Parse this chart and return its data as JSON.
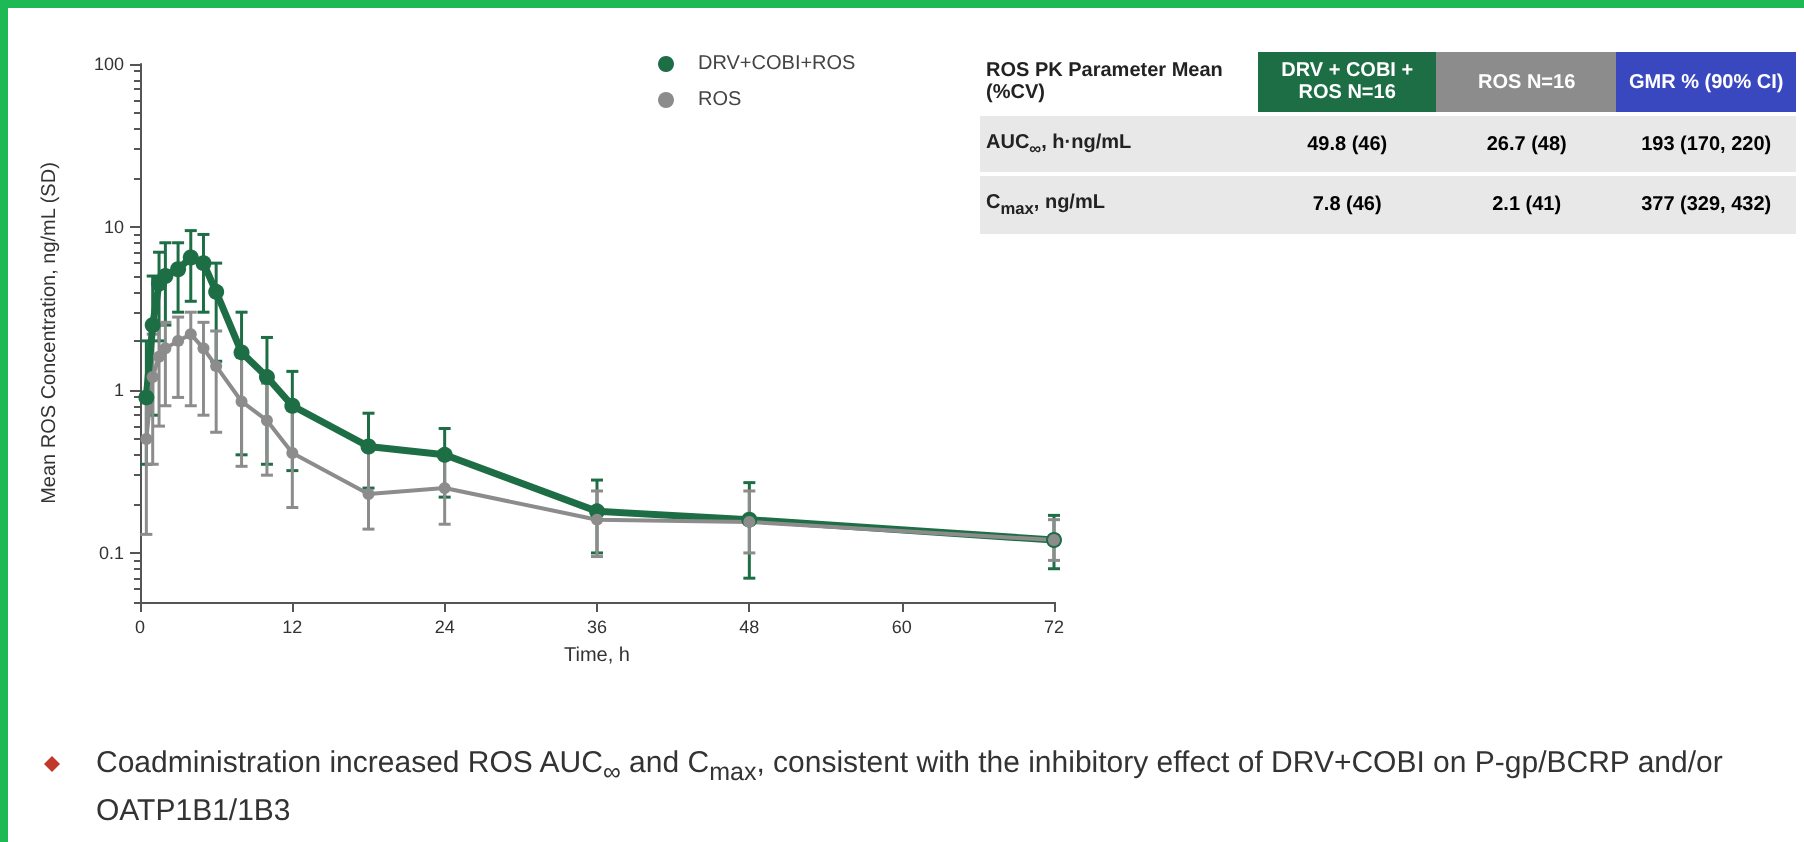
{
  "chart_data": [
    {
      "type": "line",
      "xlabel": "Time, h",
      "ylabel": "Mean ROS Concentration, ng/mL (SD)",
      "log": "y",
      "xlim": [
        0,
        72
      ],
      "xticks": [
        0,
        12,
        24,
        36,
        48,
        60,
        72
      ],
      "ylim": [
        0.05,
        100
      ],
      "yticks": [
        0.1,
        1,
        10,
        100
      ],
      "grid": false,
      "legend": "top",
      "marker": "circle",
      "line_style": "solid",
      "x": [
        0.5,
        1,
        1.5,
        2,
        3,
        4,
        5,
        6,
        8,
        10,
        12,
        18,
        24,
        36,
        48,
        72
      ],
      "series": [
        {
          "name": "DRV+COBI+ROS",
          "color": "#1e6e45",
          "values": [
            0.9,
            2.5,
            4.5,
            5,
            5.5,
            6.5,
            6,
            4,
            1.7,
            1.2,
            0.8,
            0.45,
            0.4,
            0.18,
            0.16,
            0.12
          ],
          "errors": [
            [
              0.35,
              2
            ],
            [
              0.7,
              5
            ],
            [
              2,
              7
            ],
            [
              2.5,
              8
            ],
            [
              3,
              8
            ],
            [
              3.5,
              9.5
            ],
            [
              3,
              9
            ],
            [
              1.5,
              6
            ],
            [
              0.4,
              3
            ],
            [
              0.35,
              2.1
            ],
            [
              0.32,
              1.3
            ],
            [
              0.25,
              0.72
            ],
            [
              0.22,
              0.58
            ],
            [
              0.1,
              0.28
            ],
            [
              0.07,
              0.27
            ],
            [
              0.08,
              0.17
            ]
          ]
        },
        {
          "name": "ROS",
          "color": "#8c8c8c",
          "values": [
            0.5,
            1.2,
            1.6,
            1.8,
            2,
            2.2,
            1.8,
            1.4,
            0.85,
            0.65,
            0.41,
            0.23,
            0.25,
            0.16,
            0.155,
            0.12
          ],
          "errors": [
            [
              0.13,
              0.9
            ],
            [
              0.35,
              2.2
            ],
            [
              0.6,
              2.5
            ],
            [
              0.8,
              2.6
            ],
            [
              0.9,
              2.8
            ],
            [
              0.8,
              3
            ],
            [
              0.7,
              2.6
            ],
            [
              0.55,
              2.3
            ],
            [
              0.34,
              1.6
            ],
            [
              0.3,
              1.1
            ],
            [
              0.19,
              0.75
            ],
            [
              0.14,
              0.45
            ],
            [
              0.15,
              0.4
            ],
            [
              0.095,
              0.24
            ],
            [
              0.1,
              0.24
            ],
            [
              0.09,
              0.16
            ]
          ]
        }
      ],
      "annotations": [
        "Coadministration increased ROS AUC$_{∞}$ and C$_{max}$, consistent with the inhibitory effect of DRV+COBI on P-gp/BCRP and/or OATP1B1/1B3"
      ]
    },
    {
      "type": "other",
      "annotations": [
        "ROS PK Parameter Mean (%CV)",
        "DRV + COBI + ROS N=16",
        "ROS N=16",
        "GMR % (90% CI)",
        "AUC$_{∞}$, h·ng/mL",
        "49.8 (46)",
        "26.7 (48)",
        "193 (170, 220)",
        "C$_{max}$, ng/mL",
        "7.8 (46)",
        "2.1 (41)",
        "377 (329, 432)"
      ]
    }
  ]
}
